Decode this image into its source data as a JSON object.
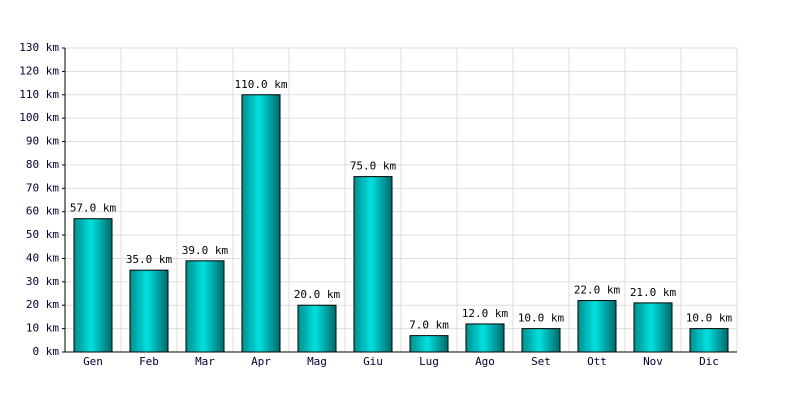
{
  "chart_data": {
    "type": "bar",
    "categories": [
      "Gen",
      "Feb",
      "Mar",
      "Apr",
      "Mag",
      "Giu",
      "Lug",
      "Ago",
      "Set",
      "Ott",
      "Nov",
      "Dic"
    ],
    "values": [
      57,
      35,
      39,
      110,
      20,
      75,
      7,
      12,
      10,
      22,
      21,
      10
    ],
    "value_labels": [
      "57.0 km",
      "35.0 km",
      "39.0 km",
      "110.0 km",
      "20.0 km",
      "75.0 km",
      "7.0 km",
      "12.0 km",
      "10.0 km",
      "22.0 km",
      "21.0 km",
      "10.0 km"
    ],
    "color": "#00e0e0",
    "ylim": [
      0,
      130
    ],
    "yticks": [
      {
        "value": 0,
        "label": "0 km"
      },
      {
        "value": 10,
        "label": "10 km"
      },
      {
        "value": 20,
        "label": "20 km"
      },
      {
        "value": 30,
        "label": "30 km"
      },
      {
        "value": 40,
        "label": "40 km"
      },
      {
        "value": 50,
        "label": "50 km"
      },
      {
        "value": 60,
        "label": "60 km"
      },
      {
        "value": 70,
        "label": "70 km"
      },
      {
        "value": 80,
        "label": "80 km"
      },
      {
        "value": 90,
        "label": "90 km"
      },
      {
        "value": 100,
        "label": "100 km"
      },
      {
        "value": 110,
        "label": "110 km"
      },
      {
        "value": 120,
        "label": "120 km"
      },
      {
        "value": 130,
        "label": "130 km"
      }
    ],
    "grid": true
  }
}
